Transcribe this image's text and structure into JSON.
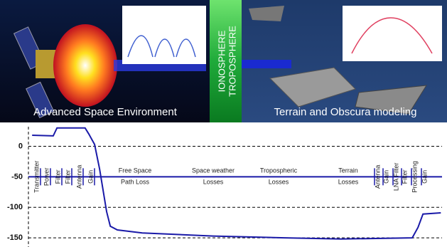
{
  "banner": {
    "left_caption": "Advanced Space Environment",
    "middle_top": "IONOSPHERE",
    "middle_bottom": "TROPOSPHERE",
    "right_caption": "Terrain and Obscura modeling"
  },
  "chart_data": {
    "type": "line",
    "x": [
      0.9,
      6.0,
      6.9,
      13.7,
      14.6,
      16.0,
      17.2,
      18.9,
      19.8,
      21.5,
      27.5,
      44.7,
      61.9,
      75.6,
      92.8,
      94.2,
      95.4,
      99.7
    ],
    "xlim": [
      0,
      100
    ],
    "series": [
      {
        "color": "#1a1aa8",
        "values": [
          18,
          17,
          30,
          30,
          20,
          3,
          -37,
          -107,
          -131,
          -137,
          -142,
          -147,
          -150,
          -152,
          -150,
          -133,
          -111,
          -109
        ]
      }
    ],
    "ylim": [
      -165,
      32
    ],
    "yticks": [
      0,
      -50,
      -100,
      -150
    ],
    "grid": true,
    "reference_line": {
      "value": -50,
      "color": "#1a1aa8"
    },
    "stage_labels_left": [
      "Transmitter",
      "Power",
      "Filter",
      "Filter",
      "Antenna",
      "Gain"
    ],
    "stage_labels_middle": [
      [
        "Free Space",
        "Path Loss"
      ],
      [
        "Space weather",
        "Losses"
      ],
      [
        "Tropospheric",
        "Losses"
      ],
      [
        "Terrain",
        "Losses"
      ]
    ],
    "stage_labels_right": [
      "Antenna",
      "Gain",
      "LNA Filter",
      "Filter",
      "Processing",
      "Gain"
    ]
  }
}
